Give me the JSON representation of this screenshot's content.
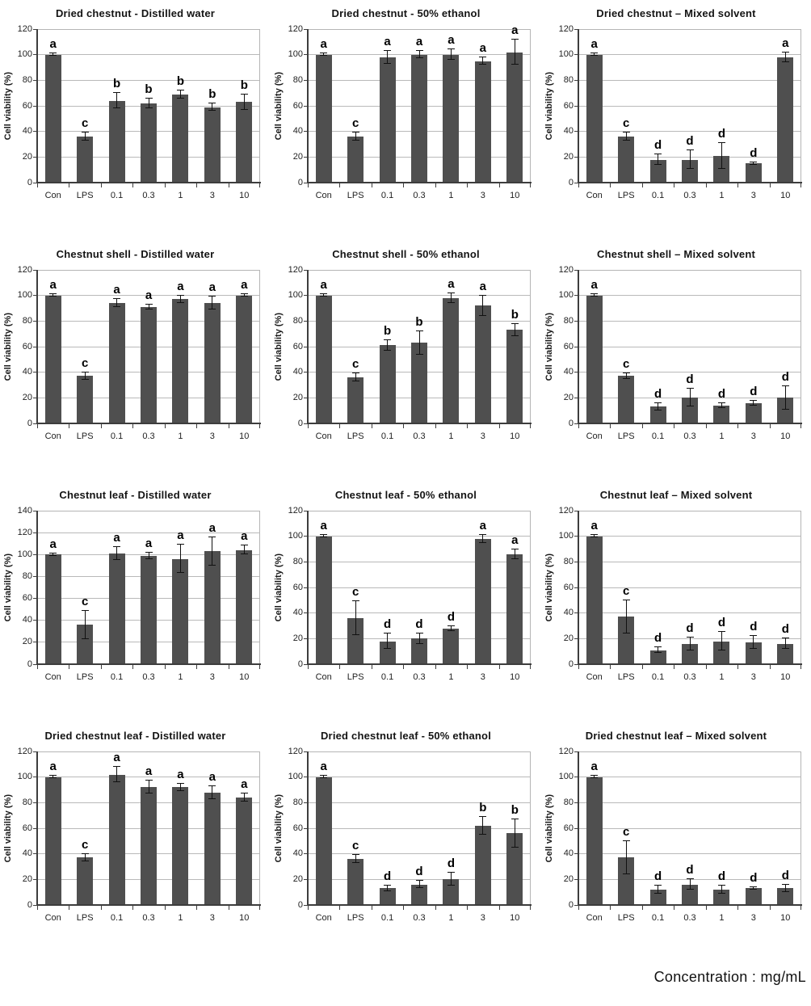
{
  "page": {
    "footer_label": "Concentration : mg/mL"
  },
  "shared": {
    "ylabel": "Cell viability (%)",
    "categories": [
      "Con",
      "LPS",
      "0.1",
      "0.3",
      "1",
      "3",
      "10"
    ],
    "colors": {
      "bar": "#4f4f4f",
      "grid": "#b9b9b9",
      "axis": "#3d3d3d",
      "error": "#111111",
      "title": "#141414"
    },
    "legend": "none",
    "grid_on": true
  },
  "chart_data": [
    {
      "type": "bar",
      "title": "Dried chestnut - Distilled water",
      "ylabel": "Cell viability (%)",
      "xlabel": "",
      "ylim": [
        0,
        120
      ],
      "ytick_step": 20,
      "categories": [
        "Con",
        "LPS",
        "0.1",
        "0.3",
        "1",
        "3",
        "10"
      ],
      "values": [
        100,
        36,
        64,
        62,
        69,
        59,
        63
      ],
      "errors": [
        1,
        3,
        6,
        4,
        3,
        3,
        6
      ],
      "letters": [
        "a",
        "c",
        "b",
        "b",
        "b",
        "b",
        "b"
      ]
    },
    {
      "type": "bar",
      "title": "Dried chestnut - 50% ethanol",
      "ylabel": "Cell viability (%)",
      "xlabel": "",
      "ylim": [
        0,
        120
      ],
      "ytick_step": 20,
      "categories": [
        "Con",
        "LPS",
        "0.1",
        "0.3",
        "1",
        "3",
        "10"
      ],
      "values": [
        100,
        36,
        98,
        100,
        100,
        95,
        102
      ],
      "errors": [
        1,
        3,
        5,
        3,
        4,
        3,
        10
      ],
      "letters": [
        "a",
        "c",
        "a",
        "a",
        "a",
        "a",
        "a"
      ]
    },
    {
      "type": "bar",
      "title": "Dried chestnut – Mixed solvent",
      "ylabel": "Cell viability (%)",
      "xlabel": "",
      "ylim": [
        0,
        120
      ],
      "ytick_step": 20,
      "categories": [
        "Con",
        "LPS",
        "0.1",
        "0.3",
        "1",
        "3",
        "10"
      ],
      "values": [
        100,
        36,
        18,
        18,
        21,
        15,
        98
      ],
      "errors": [
        1,
        3,
        4,
        7,
        10,
        1,
        4
      ],
      "letters": [
        "a",
        "c",
        "d",
        "d",
        "d",
        "d",
        "a"
      ]
    },
    {
      "type": "bar",
      "title": "Chestnut shell - Distilled water",
      "ylabel": "Cell viability (%)",
      "xlabel": "",
      "ylim": [
        0,
        120
      ],
      "ytick_step": 20,
      "categories": [
        "Con",
        "LPS",
        "0.1",
        "0.3",
        "1",
        "3",
        "10"
      ],
      "values": [
        100,
        37,
        94,
        91,
        97,
        94,
        100
      ],
      "errors": [
        1,
        3,
        3,
        2,
        3,
        5,
        1
      ],
      "letters": [
        "a",
        "c",
        "a",
        "a",
        "a",
        "a",
        "a"
      ]
    },
    {
      "type": "bar",
      "title": "Chestnut shell - 50% ethanol",
      "ylabel": "Cell viability (%)",
      "xlabel": "",
      "ylim": [
        0,
        120
      ],
      "ytick_step": 20,
      "categories": [
        "Con",
        "LPS",
        "0.1",
        "0.3",
        "1",
        "3",
        "10"
      ],
      "values": [
        100,
        36,
        61,
        63,
        98,
        92,
        73
      ],
      "errors": [
        1,
        3,
        4,
        9,
        4,
        8,
        5
      ],
      "letters": [
        "a",
        "c",
        "b",
        "b",
        "a",
        "a",
        "b"
      ]
    },
    {
      "type": "bar",
      "title": "Chestnut shell – Mixed solvent",
      "ylabel": "Cell viability (%)",
      "xlabel": "",
      "ylim": [
        0,
        120
      ],
      "ytick_step": 20,
      "categories": [
        "Con",
        "LPS",
        "0.1",
        "0.3",
        "1",
        "3",
        "10"
      ],
      "values": [
        100,
        37,
        13,
        20,
        14,
        16,
        20
      ],
      "errors": [
        1,
        2,
        3,
        7,
        2,
        2,
        9
      ],
      "letters": [
        "a",
        "c",
        "d",
        "d",
        "d",
        "d",
        "d"
      ]
    },
    {
      "type": "bar",
      "title": "Chestnut leaf - Distilled water",
      "ylabel": "Cell viability (%)",
      "xlabel": "",
      "ylim": [
        0,
        140
      ],
      "ytick_step": 20,
      "categories": [
        "Con",
        "LPS",
        "0.1",
        "0.3",
        "1",
        "3",
        "10"
      ],
      "values": [
        100,
        36,
        101,
        99,
        96,
        103,
        104
      ],
      "errors": [
        1,
        13,
        6,
        3,
        13,
        13,
        4
      ],
      "letters": [
        "a",
        "c",
        "a",
        "a",
        "a",
        "a",
        "a"
      ]
    },
    {
      "type": "bar",
      "title": "Chestnut leaf - 50% ethanol",
      "ylabel": "Cell viability (%)",
      "xlabel": "",
      "ylim": [
        0,
        120
      ],
      "ytick_step": 20,
      "categories": [
        "Con",
        "LPS",
        "0.1",
        "0.3",
        "1",
        "3",
        "10"
      ],
      "values": [
        100,
        36,
        18,
        20,
        28,
        98,
        86
      ],
      "errors": [
        1,
        13,
        6,
        4,
        2,
        3,
        4
      ],
      "letters": [
        "a",
        "c",
        "d",
        "d",
        "d",
        "a",
        "a"
      ]
    },
    {
      "type": "bar",
      "title": "Chestnut leaf – Mixed solvent",
      "ylabel": "Cell viability (%)",
      "xlabel": "",
      "ylim": [
        0,
        120
      ],
      "ytick_step": 20,
      "categories": [
        "Con",
        "LPS",
        "0.1",
        "0.3",
        "1",
        "3",
        "10"
      ],
      "values": [
        100,
        37,
        11,
        16,
        18,
        17,
        16
      ],
      "errors": [
        1,
        13,
        2,
        5,
        7,
        5,
        4
      ],
      "letters": [
        "a",
        "c",
        "d",
        "d",
        "d",
        "d",
        "d"
      ]
    },
    {
      "type": "bar",
      "title": "Dried chestnut leaf - Distilled water",
      "ylabel": "Cell viability (%)",
      "xlabel": "",
      "ylim": [
        0,
        120
      ],
      "ytick_step": 20,
      "categories": [
        "Con",
        "LPS",
        "0.1",
        "0.3",
        "1",
        "3",
        "10"
      ],
      "values": [
        100,
        37,
        102,
        92,
        92,
        88,
        84
      ],
      "errors": [
        1,
        3,
        6,
        5,
        3,
        5,
        3
      ],
      "letters": [
        "a",
        "c",
        "a",
        "a",
        "a",
        "a",
        "a"
      ]
    },
    {
      "type": "bar",
      "title": "Dried chestnut leaf - 50% ethanol",
      "ylabel": "Cell viability (%)",
      "xlabel": "",
      "ylim": [
        0,
        120
      ],
      "ytick_step": 20,
      "categories": [
        "Con",
        "LPS",
        "0.1",
        "0.3",
        "1",
        "3",
        "10"
      ],
      "values": [
        100,
        36,
        13,
        16,
        20,
        62,
        56
      ],
      "errors": [
        1,
        3,
        2,
        3,
        5,
        7,
        11
      ],
      "letters": [
        "a",
        "c",
        "d",
        "d",
        "d",
        "b",
        "b"
      ]
    },
    {
      "type": "bar",
      "title": "Dried chestnut leaf – Mixed solvent",
      "ylabel": "Cell viability (%)",
      "xlabel": "",
      "ylim": [
        0,
        120
      ],
      "ytick_step": 20,
      "categories": [
        "Con",
        "LPS",
        "0.1",
        "0.3",
        "1",
        "3",
        "10"
      ],
      "values": [
        100,
        37,
        12,
        16,
        12,
        13,
        13
      ],
      "errors": [
        1,
        13,
        3,
        4,
        3,
        1,
        3
      ],
      "letters": [
        "a",
        "c",
        "d",
        "d",
        "d",
        "d",
        "d"
      ]
    }
  ]
}
